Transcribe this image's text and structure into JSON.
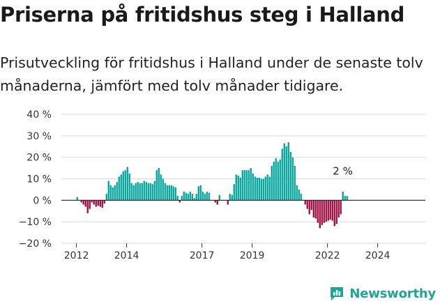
{
  "header": {
    "title": "Priserna på fritidshus steg i Halland",
    "subtitle": "Prisutveckling för fritidshus i Halland under de senaste tolv månaderna, jämfört med tolv månader tidigare."
  },
  "logo": {
    "text": "Newsworthy",
    "icon": "newsworthy-logo-icon",
    "color": "#1fa596"
  },
  "colors": {
    "positive": "#00a39a",
    "negative": "#9c0a3f",
    "grid": "#d9d9d9",
    "zero": "#222222"
  },
  "chart_data": {
    "type": "bar",
    "ylim": [
      -20,
      40
    ],
    "xlim": [
      2011.4,
      2025.9
    ],
    "yticks": [
      40,
      30,
      20,
      10,
      0,
      -10,
      -20
    ],
    "ytick_labels": [
      "40 %",
      "30 %",
      "20 %",
      "10 %",
      "0 %",
      "−10 %",
      "−20 %"
    ],
    "xticks": [
      2012,
      2014,
      2017,
      2019,
      2022,
      2024
    ],
    "xtick_labels": [
      "2012",
      "2014",
      "2017",
      "2019",
      "2022",
      "2024"
    ],
    "start_month": "2012-01",
    "annotation": {
      "text": "2 %",
      "value": 2
    },
    "values": [
      1.5,
      0,
      -1,
      -2,
      -3,
      -6,
      -4,
      -1,
      -2,
      -3,
      -2.5,
      -3,
      -3.5,
      -1.5,
      3,
      9,
      7,
      6,
      7,
      8.5,
      11,
      12,
      13.5,
      14,
      15.5,
      12.5,
      8,
      7,
      8,
      8.5,
      8,
      8,
      9,
      8.5,
      8,
      8,
      7.5,
      9,
      14,
      15,
      12,
      10,
      8,
      7,
      7,
      7,
      6.5,
      6,
      2,
      -1,
      2,
      4,
      3.5,
      3,
      4,
      3,
      1,
      3,
      6.5,
      7,
      4,
      3,
      4,
      3.5,
      0,
      0,
      -1,
      -2,
      2.5,
      0,
      0,
      0,
      -2,
      3,
      2.5,
      7.5,
      12,
      11.5,
      10.5,
      14,
      14,
      14,
      14,
      15,
      12.5,
      11,
      10.5,
      10.5,
      10,
      10,
      11,
      12,
      11,
      16,
      18,
      19.5,
      18,
      19,
      24,
      26.5,
      25,
      27,
      22.5,
      20,
      16,
      7,
      5,
      3,
      0,
      -2,
      -4,
      -6.5,
      -4.5,
      -8,
      -8.5,
      -10.5,
      -13,
      -11.5,
      -10.5,
      -10,
      -9.5,
      -9,
      -9.5,
      -12,
      -11,
      -8,
      -6.5,
      4,
      2,
      2
    ]
  }
}
